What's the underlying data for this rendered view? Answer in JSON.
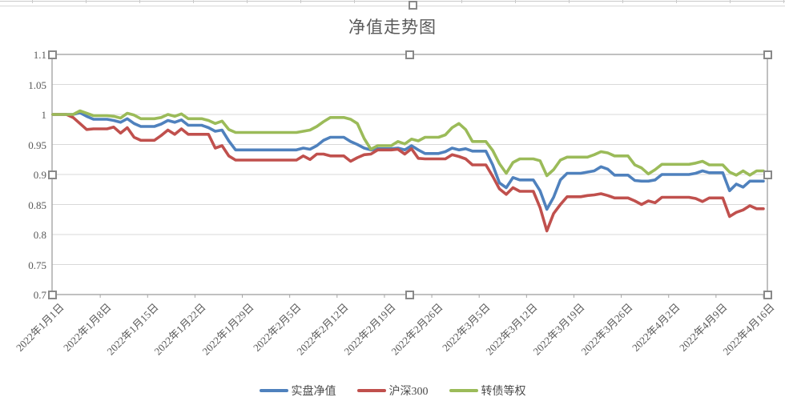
{
  "page": {
    "background": "#ffffff"
  },
  "chart": {
    "title": "净值走势图",
    "plot_area_selected": true,
    "y_axis": {
      "tick_labels": [
        "1.1",
        "1.05",
        "1",
        "0.95",
        "0.9",
        "0.85",
        "0.8",
        "0.75",
        "0.7"
      ]
    },
    "x_axis": {
      "tick_labels": [
        "2022年1月1日",
        "2022年1月8日",
        "2022年1月15日",
        "2022年1月22日",
        "2022年1月29日",
        "2022年2月5日",
        "2022年2月12日",
        "2022年2月19日",
        "2022年2月26日",
        "2022年3月5日",
        "2022年3月12日",
        "2022年3月19日",
        "2022年3月26日",
        "2022年4月2日",
        "2022年4月9日",
        "2022年4月16日"
      ]
    },
    "legend": {
      "items": [
        {
          "label": "实盘净值",
          "color": "#4F81BD"
        },
        {
          "label": "沪深300",
          "color": "#C0504D"
        },
        {
          "label": "转债等权",
          "color": "#9BBB59"
        }
      ]
    },
    "colors": {
      "gridline": "#d9d9d9",
      "plot_border": "#a6a6a6",
      "axis_text": "#595959"
    }
  },
  "chart_data": {
    "type": "line",
    "title": "净值走势图",
    "x_start_date": "2022-01-01",
    "x_step_days": 1,
    "n_points": 106,
    "xtick_every_days": 7,
    "xtick_labels": [
      "2022年1月1日",
      "2022年1月8日",
      "2022年1月15日",
      "2022年1月22日",
      "2022年1月29日",
      "2022年2月5日",
      "2022年2月12日",
      "2022年2月19日",
      "2022年2月26日",
      "2022年3月5日",
      "2022年3月12日",
      "2022年3月19日",
      "2022年3月26日",
      "2022年4月2日",
      "2022年4月9日",
      "2022年4月16日"
    ],
    "ylim": [
      0.7,
      1.1
    ],
    "ytick_step": 0.05,
    "grid": "horizontal",
    "legend_position": "bottom",
    "series": [
      {
        "name": "实盘净值",
        "color": "#4F81BD",
        "values": [
          1.0,
          1.0,
          1.0,
          1.0,
          1.003,
          0.997,
          0.992,
          0.992,
          0.992,
          0.99,
          0.987,
          0.993,
          0.985,
          0.98,
          0.98,
          0.98,
          0.984,
          0.99,
          0.987,
          0.991,
          0.982,
          0.982,
          0.982,
          0.978,
          0.972,
          0.974,
          0.956,
          0.941,
          0.941,
          0.941,
          0.941,
          0.941,
          0.941,
          0.941,
          0.941,
          0.941,
          0.941,
          0.944,
          0.942,
          0.948,
          0.957,
          0.962,
          0.962,
          0.962,
          0.955,
          0.95,
          0.944,
          0.941,
          0.943,
          0.943,
          0.943,
          0.944,
          0.941,
          0.948,
          0.941,
          0.935,
          0.935,
          0.935,
          0.938,
          0.944,
          0.941,
          0.943,
          0.939,
          0.939,
          0.939,
          0.916,
          0.886,
          0.878,
          0.895,
          0.891,
          0.891,
          0.891,
          0.873,
          0.842,
          0.862,
          0.891,
          0.902,
          0.902,
          0.902,
          0.904,
          0.906,
          0.913,
          0.909,
          0.899,
          0.899,
          0.899,
          0.89,
          0.889,
          0.889,
          0.891,
          0.9,
          0.9,
          0.9,
          0.9,
          0.9,
          0.902,
          0.906,
          0.903,
          0.903,
          0.903,
          0.873,
          0.884,
          0.879,
          0.889,
          0.889,
          0.889
        ]
      },
      {
        "name": "沪深300",
        "color": "#C0504D",
        "values": [
          1.0,
          1.0,
          1.0,
          0.995,
          0.985,
          0.975,
          0.976,
          0.976,
          0.976,
          0.979,
          0.969,
          0.978,
          0.962,
          0.957,
          0.957,
          0.957,
          0.965,
          0.974,
          0.967,
          0.976,
          0.967,
          0.967,
          0.967,
          0.967,
          0.944,
          0.948,
          0.931,
          0.924,
          0.924,
          0.924,
          0.924,
          0.924,
          0.924,
          0.924,
          0.924,
          0.924,
          0.924,
          0.931,
          0.925,
          0.934,
          0.934,
          0.931,
          0.931,
          0.931,
          0.922,
          0.928,
          0.933,
          0.934,
          0.941,
          0.941,
          0.941,
          0.942,
          0.934,
          0.943,
          0.927,
          0.926,
          0.926,
          0.926,
          0.926,
          0.933,
          0.93,
          0.926,
          0.916,
          0.916,
          0.916,
          0.897,
          0.876,
          0.867,
          0.878,
          0.872,
          0.872,
          0.872,
          0.845,
          0.806,
          0.835,
          0.85,
          0.863,
          0.863,
          0.863,
          0.865,
          0.866,
          0.868,
          0.865,
          0.861,
          0.861,
          0.861,
          0.856,
          0.85,
          0.856,
          0.853,
          0.862,
          0.862,
          0.862,
          0.862,
          0.862,
          0.86,
          0.855,
          0.861,
          0.861,
          0.861,
          0.83,
          0.837,
          0.841,
          0.848,
          0.843,
          0.843
        ]
      },
      {
        "name": "转债等权",
        "color": "#9BBB59",
        "values": [
          1.0,
          1.0,
          1.0,
          1.0,
          1.006,
          1.002,
          0.998,
          0.998,
          0.998,
          0.997,
          0.994,
          1.002,
          0.999,
          0.993,
          0.993,
          0.993,
          0.995,
          1.0,
          0.997,
          1.001,
          0.993,
          0.993,
          0.993,
          0.99,
          0.985,
          0.989,
          0.975,
          0.97,
          0.97,
          0.97,
          0.97,
          0.97,
          0.97,
          0.97,
          0.97,
          0.97,
          0.97,
          0.972,
          0.974,
          0.98,
          0.988,
          0.995,
          0.995,
          0.995,
          0.992,
          0.985,
          0.96,
          0.942,
          0.948,
          0.948,
          0.948,
          0.955,
          0.951,
          0.959,
          0.956,
          0.962,
          0.962,
          0.962,
          0.966,
          0.978,
          0.985,
          0.975,
          0.955,
          0.955,
          0.955,
          0.94,
          0.918,
          0.902,
          0.92,
          0.926,
          0.926,
          0.926,
          0.923,
          0.898,
          0.908,
          0.924,
          0.929,
          0.929,
          0.929,
          0.929,
          0.933,
          0.938,
          0.936,
          0.931,
          0.931,
          0.931,
          0.916,
          0.911,
          0.901,
          0.908,
          0.917,
          0.917,
          0.917,
          0.917,
          0.917,
          0.919,
          0.922,
          0.916,
          0.916,
          0.916,
          0.904,
          0.899,
          0.906,
          0.899,
          0.906,
          0.906
        ]
      }
    ]
  }
}
